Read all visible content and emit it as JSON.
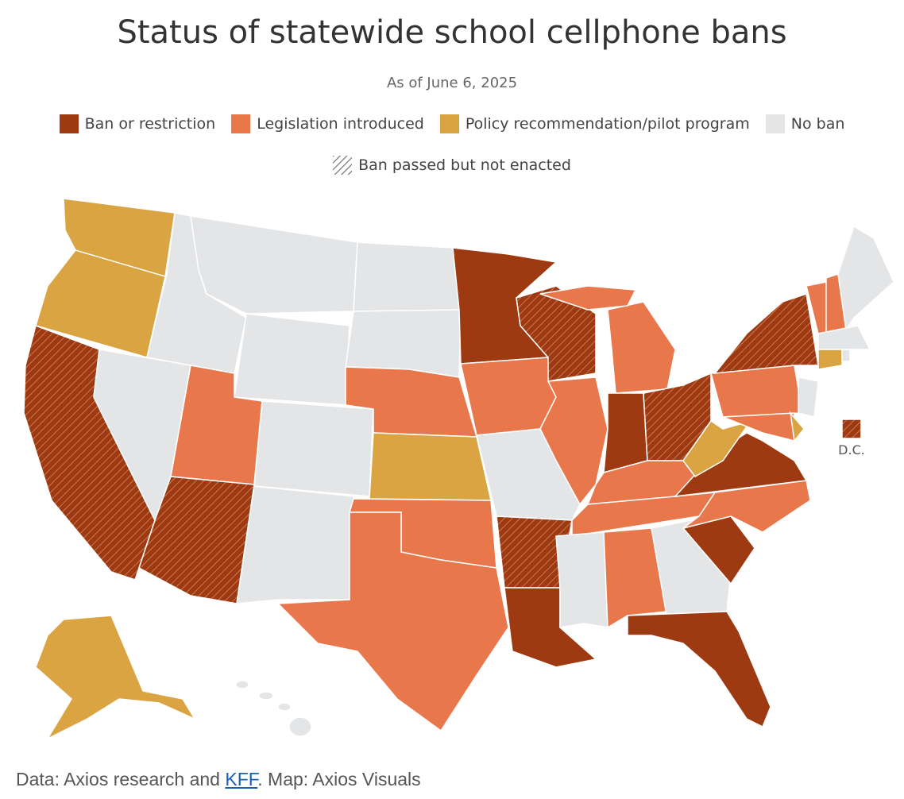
{
  "header": {
    "title": "Status of statewide school cellphone bans",
    "subtitle": "As of June 6, 2025"
  },
  "legend": {
    "items": [
      {
        "label": "Ban or restriction",
        "color": "#9e3a12"
      },
      {
        "label": "Legislation introduced",
        "color": "#e8774b"
      },
      {
        "label": "Policy recommendation/pilot program",
        "color": "#d9a441"
      },
      {
        "label": "No ban",
        "color": "#e4e5e7"
      }
    ],
    "hatch_label": "Ban passed but not enacted"
  },
  "map": {
    "dc_label": "D.C."
  },
  "footer": {
    "text_before": "Data: Axios research and ",
    "link": "KFF",
    "text_after": ". Map: Axios Visuals"
  }
}
